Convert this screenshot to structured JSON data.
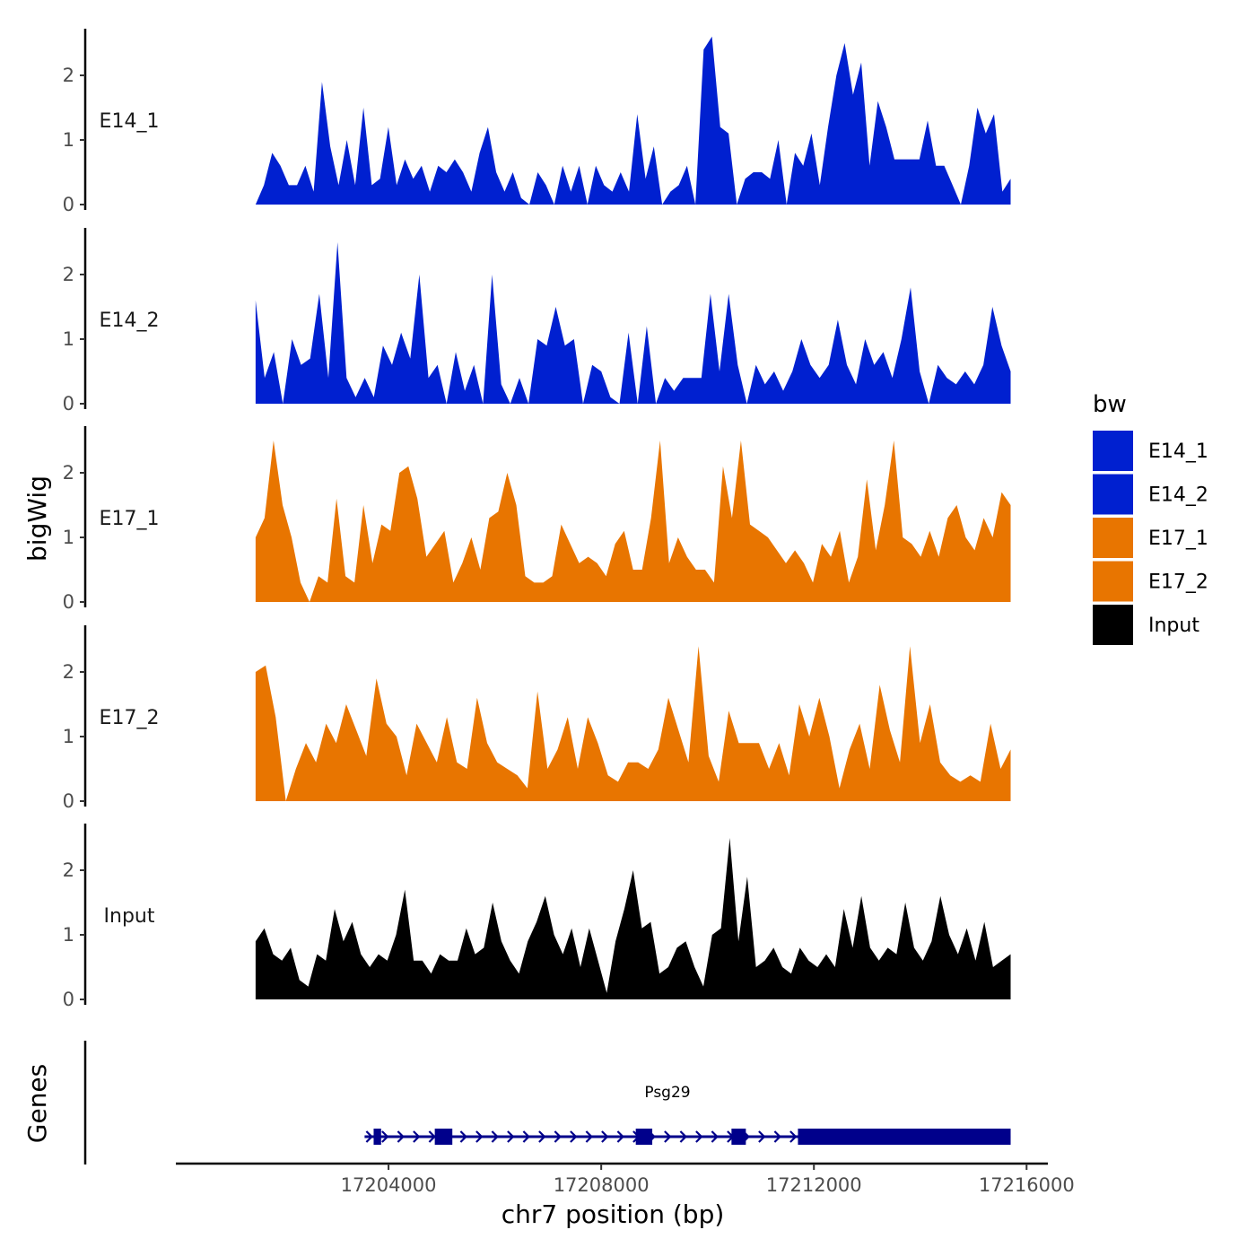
{
  "chart_data": {
    "type": "area",
    "title": "",
    "xlabel": "chr7 position (bp)",
    "ylabel": "bigWig",
    "gene_track_label": "Genes",
    "xlim": [
      17200000,
      17216400
    ],
    "ylim": [
      0,
      2.7
    ],
    "x_ticks": [
      17204000,
      17208000,
      17212000,
      17216000
    ],
    "x_tick_labels": [
      "17204000",
      "17208000",
      "17212000",
      "17216000"
    ],
    "y_ticks": [
      0,
      1,
      2
    ],
    "y_tick_labels": [
      "0",
      "1",
      "2"
    ],
    "x_start": 17201500,
    "x_end": 17215700,
    "legend": {
      "title": "bw",
      "position": "right",
      "entries": [
        {
          "label": "E14_1",
          "color": "#0020d0"
        },
        {
          "label": "E14_2",
          "color": "#0020d0"
        },
        {
          "label": "E17_1",
          "color": "#e87500"
        },
        {
          "label": "E17_2",
          "color": "#e87500"
        },
        {
          "label": "Input",
          "color": "#000000"
        }
      ]
    },
    "series": [
      {
        "name": "E14_1",
        "color": "#0020d0",
        "values": [
          0,
          0.3,
          0.8,
          0.6,
          0.3,
          0.3,
          0.6,
          0.2,
          1.9,
          0.9,
          0.3,
          1.0,
          0.3,
          1.5,
          0.3,
          0.4,
          1.2,
          0.3,
          0.7,
          0.4,
          0.6,
          0.2,
          0.6,
          0.5,
          0.7,
          0.5,
          0.2,
          0.8,
          1.2,
          0.5,
          0.2,
          0.5,
          0.1,
          0,
          0.5,
          0.3,
          0,
          0.6,
          0.2,
          0.6,
          0,
          0.6,
          0.3,
          0.2,
          0.5,
          0.2,
          1.4,
          0.4,
          0.9,
          0,
          0.2,
          0.3,
          0.6,
          0,
          2.4,
          2.6,
          1.2,
          1.1,
          0,
          0.4,
          0.5,
          0.5,
          0.4,
          1.0,
          0,
          0.8,
          0.6,
          1.1,
          0.3,
          1.2,
          2.0,
          2.5,
          1.7,
          2.2,
          0.6,
          1.6,
          1.2,
          0.7,
          0.7,
          0.7,
          0.7,
          1.3,
          0.6,
          0.6,
          0.3,
          0,
          0.6,
          1.5,
          1.1,
          1.4,
          0.2,
          0.4
        ]
      },
      {
        "name": "E14_2",
        "color": "#0020d0",
        "values": [
          1.6,
          0.4,
          0.8,
          0,
          1.0,
          0.6,
          0.7,
          1.7,
          0.4,
          2.5,
          0.4,
          0.1,
          0.4,
          0.1,
          0.9,
          0.6,
          1.1,
          0.7,
          2.0,
          0.4,
          0.6,
          0,
          0.8,
          0.2,
          0.6,
          0,
          2.0,
          0.3,
          0,
          0.4,
          0,
          1.0,
          0.9,
          1.5,
          0.9,
          1.0,
          0,
          0.6,
          0.5,
          0.1,
          0,
          1.1,
          0,
          1.2,
          0,
          0.4,
          0.2,
          0.4,
          0.4,
          0.4,
          1.7,
          0.5,
          1.7,
          0.6,
          0,
          0.6,
          0.3,
          0.5,
          0.2,
          0.5,
          1.0,
          0.6,
          0.4,
          0.6,
          1.3,
          0.6,
          0.3,
          1.0,
          0.6,
          0.8,
          0.4,
          1.0,
          1.8,
          0.5,
          0,
          0.6,
          0.4,
          0.3,
          0.5,
          0.3,
          0.6,
          1.5,
          0.9,
          0.5
        ]
      },
      {
        "name": "E17_1",
        "color": "#e87500",
        "values": [
          1.0,
          1.3,
          2.5,
          1.5,
          1.0,
          0.3,
          0,
          0.4,
          0.3,
          1.6,
          0.4,
          0.3,
          1.5,
          0.6,
          1.2,
          1.1,
          2.0,
          2.1,
          1.6,
          0.7,
          0.9,
          1.1,
          0.3,
          0.6,
          1.0,
          0.5,
          1.3,
          1.4,
          2.0,
          1.5,
          0.4,
          0.3,
          0.3,
          0.4,
          1.2,
          0.9,
          0.6,
          0.7,
          0.6,
          0.4,
          0.9,
          1.1,
          0.5,
          0.5,
          1.3,
          2.5,
          0.6,
          1.0,
          0.7,
          0.5,
          0.5,
          0.3,
          2.1,
          1.3,
          2.5,
          1.2,
          1.1,
          1.0,
          0.8,
          0.6,
          0.8,
          0.6,
          0.3,
          0.9,
          0.7,
          1.1,
          0.3,
          0.7,
          1.9,
          0.8,
          1.5,
          2.5,
          1.0,
          0.9,
          0.7,
          1.1,
          0.7,
          1.3,
          1.5,
          1.0,
          0.8,
          1.3,
          1.0,
          1.7,
          1.5
        ]
      },
      {
        "name": "E17_2",
        "color": "#e87500",
        "values": [
          2.0,
          2.1,
          1.3,
          0,
          0.5,
          0.9,
          0.6,
          1.2,
          0.9,
          1.5,
          1.1,
          0.7,
          1.9,
          1.2,
          1.0,
          0.4,
          1.2,
          0.9,
          0.6,
          1.3,
          0.6,
          0.5,
          1.6,
          0.9,
          0.6,
          0.5,
          0.4,
          0.2,
          1.7,
          0.5,
          0.8,
          1.3,
          0.5,
          1.3,
          0.9,
          0.4,
          0.3,
          0.6,
          0.6,
          0.5,
          0.8,
          1.6,
          1.1,
          0.6,
          2.4,
          0.7,
          0.3,
          1.4,
          0.9,
          0.9,
          0.9,
          0.5,
          0.9,
          0.4,
          1.5,
          1.0,
          1.6,
          1.0,
          0.2,
          0.8,
          1.2,
          0.5,
          1.8,
          1.1,
          0.6,
          2.4,
          0.9,
          1.5,
          0.6,
          0.4,
          0.3,
          0.4,
          0.3,
          1.2,
          0.5,
          0.8
        ]
      },
      {
        "name": "Input",
        "color": "#000000",
        "values": [
          0.9,
          1.1,
          0.7,
          0.6,
          0.8,
          0.3,
          0.2,
          0.7,
          0.6,
          1.4,
          0.9,
          1.2,
          0.7,
          0.5,
          0.7,
          0.6,
          1.0,
          1.7,
          0.6,
          0.6,
          0.4,
          0.7,
          0.6,
          0.6,
          1.1,
          0.7,
          0.8,
          1.5,
          0.9,
          0.6,
          0.4,
          0.9,
          1.2,
          1.6,
          1.0,
          0.7,
          1.1,
          0.5,
          1.1,
          0.6,
          0.1,
          0.9,
          1.4,
          2.0,
          1.1,
          1.2,
          0.4,
          0.5,
          0.8,
          0.9,
          0.5,
          0.2,
          1.0,
          1.1,
          2.5,
          0.9,
          1.9,
          0.5,
          0.6,
          0.8,
          0.5,
          0.4,
          0.8,
          0.6,
          0.5,
          0.7,
          0.5,
          1.4,
          0.8,
          1.6,
          0.8,
          0.6,
          0.8,
          0.7,
          1.5,
          0.8,
          0.6,
          0.9,
          1.6,
          1.0,
          0.7,
          1.1,
          0.6,
          1.2,
          0.5,
          0.6,
          0.7
        ]
      }
    ],
    "gene": {
      "name": "Psg29",
      "strand": "+",
      "start": 17203550,
      "end": 17215700,
      "exons": [
        [
          17203720,
          17203860
        ],
        [
          17204870,
          17205200
        ],
        [
          17208650,
          17208960
        ],
        [
          17210450,
          17210720
        ],
        [
          17211700,
          17215700
        ]
      ],
      "color": "#00008b"
    }
  }
}
